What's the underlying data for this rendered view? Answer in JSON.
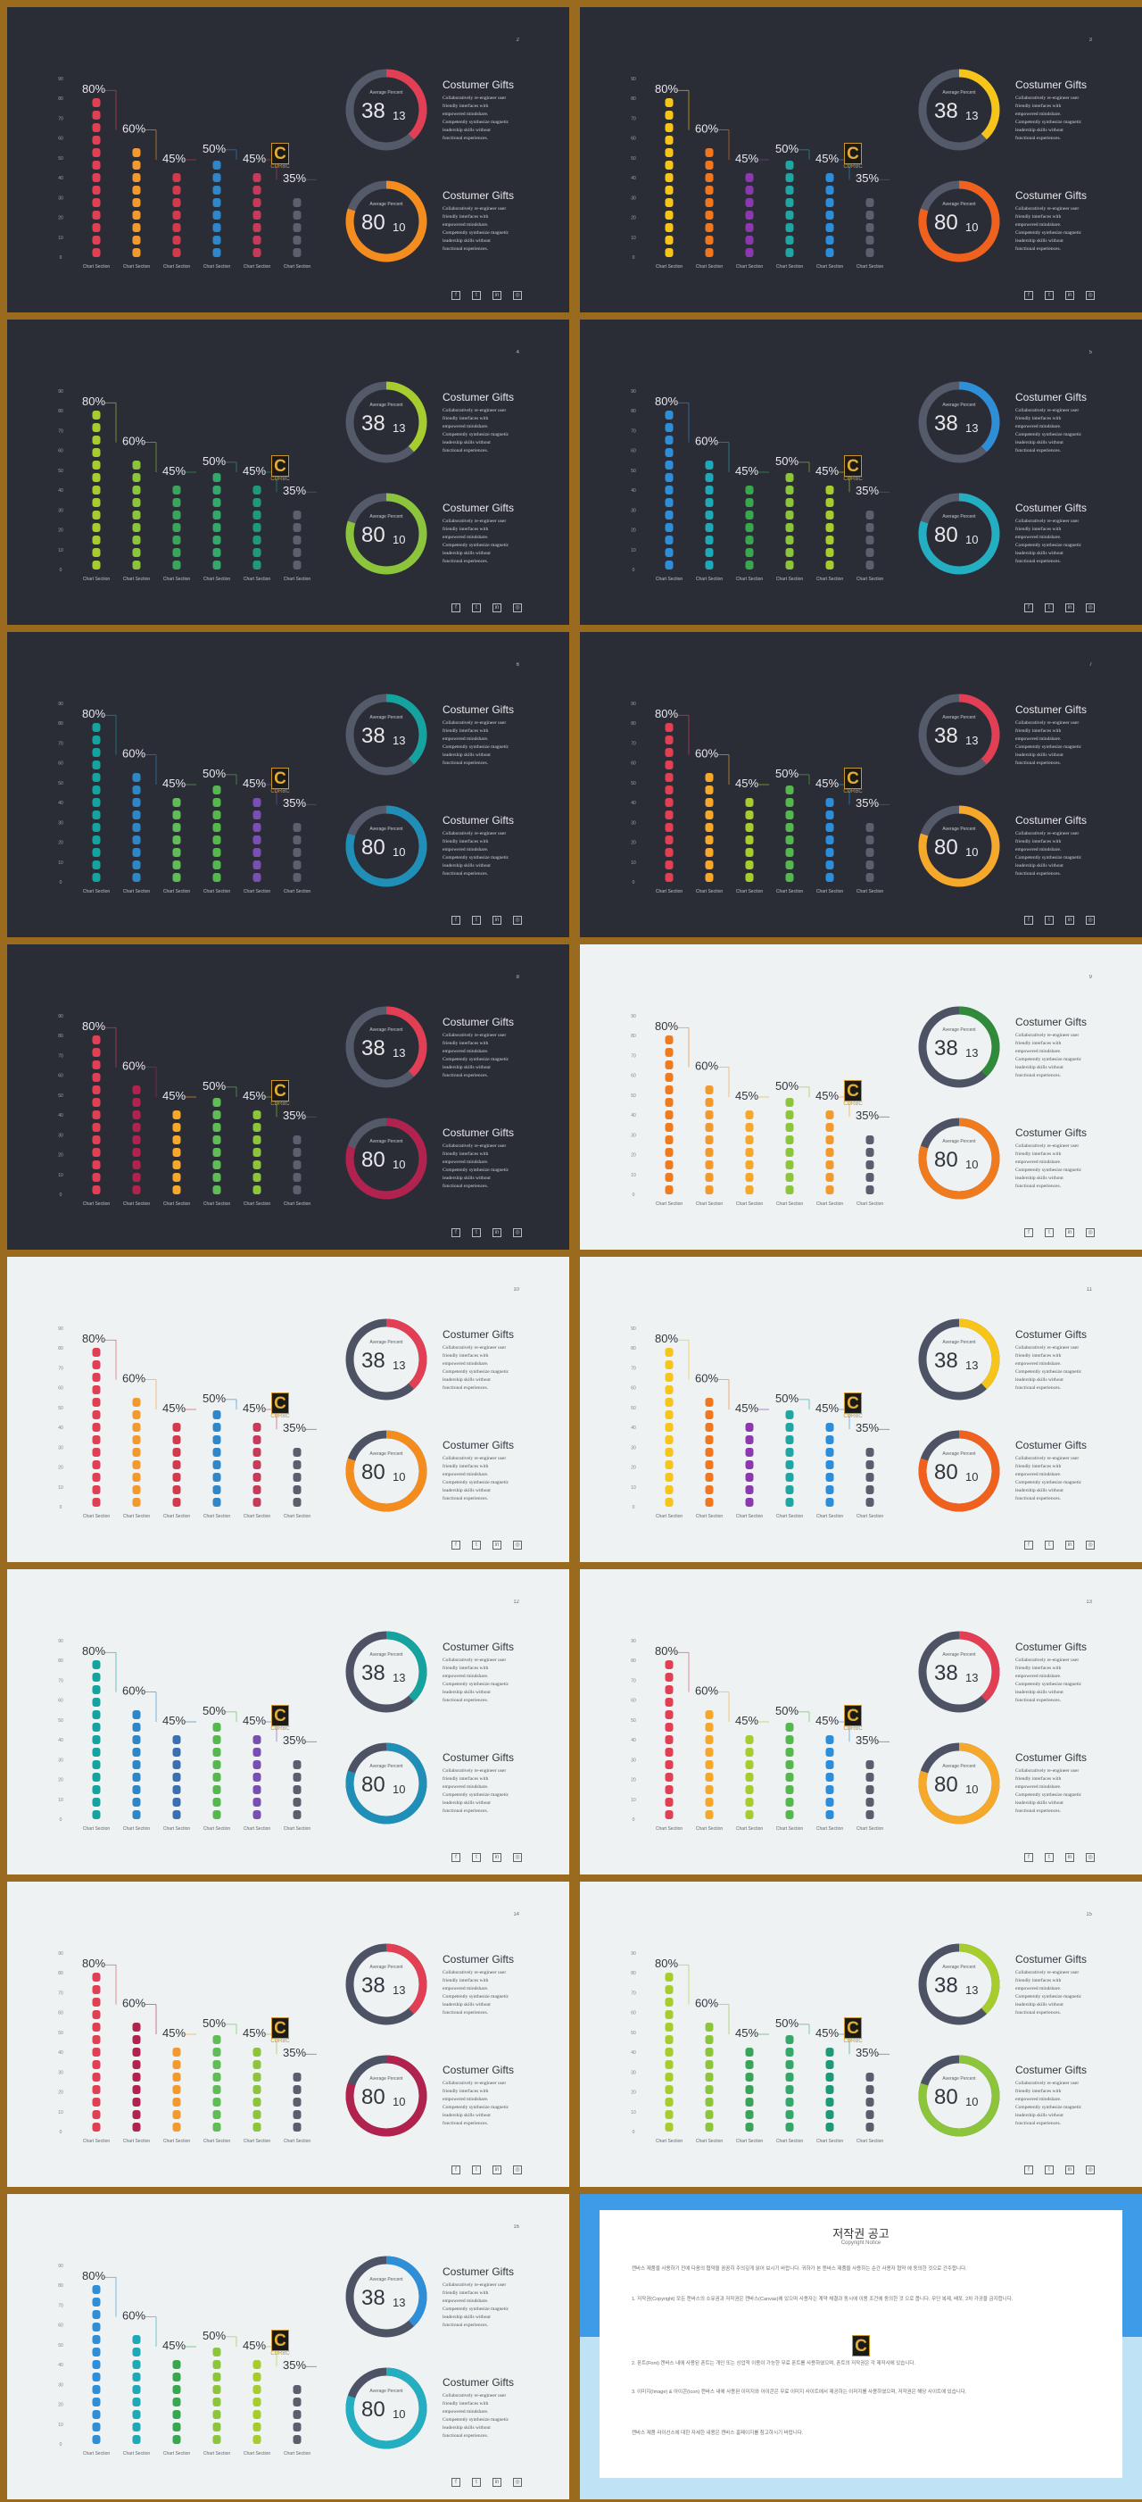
{
  "colors": {
    "frame": "#9a6a1e",
    "dark_bg": "#2b2d36",
    "light_bg": "#eef2f3",
    "gray_bar_dark": "#5b5f6e",
    "gray_bar_light": "#5a5e6d",
    "donut_track_dark": "#555a6a",
    "donut_track_light": "#4d5264",
    "notice_blue": "#3d9be8",
    "notice_light": "#bfe3f5"
  },
  "common": {
    "y_ticks": [
      "90",
      "80",
      "70",
      "60",
      "50",
      "40",
      "30",
      "20",
      "10",
      "0"
    ],
    "bar_label": "Chart Section",
    "percent_labels": [
      "80%",
      "60%",
      "45%",
      "50%",
      "45%",
      "35%"
    ],
    "donut_avg_label": "Average Percent",
    "donut1_big": "38",
    "donut1_small": "13",
    "donut2_big": "80",
    "donut2_small": "10",
    "gift_title": "Costumer Gifts",
    "gift_desc": [
      "Collaboratively re-engineer user",
      "friendly interfaces with",
      "empowered mindshare.",
      "Competently synthesize magnetic",
      "leadership skills without",
      "functional experiences."
    ],
    "logo_text": "C",
    "logo_caption": "CDRBC",
    "social_icons": [
      "facebook-icon",
      "twitter-icon",
      "linkedin-icon",
      "instagram-icon"
    ],
    "social_glyphs": [
      "f",
      "t",
      "in",
      "◎"
    ]
  },
  "chart_data": {
    "type": "bar",
    "categories": [
      "Chart Section",
      "Chart Section",
      "Chart Section",
      "Chart Section",
      "Chart Section",
      "Chart Section"
    ],
    "values": [
      80,
      60,
      45,
      50,
      45,
      35
    ],
    "ylim": [
      0,
      90
    ]
  },
  "slides": [
    {
      "page": "2",
      "theme": "dark",
      "colors": [
        "#e23f55",
        "#f29a2e",
        "#d33a4e",
        "#2f86c8",
        "#c63a5a",
        "#5b5f6e"
      ],
      "donut1": "#e23f55",
      "donut2": "#f58d1e",
      "donut1_fraction": 0.38,
      "donut2_fraction": 0.8
    },
    {
      "page": "3",
      "theme": "dark",
      "colors": [
        "#f7c41a",
        "#f0771e",
        "#8c39b0",
        "#1fa6a3",
        "#2c8ddb",
        "#5b5f6e"
      ],
      "donut1": "#f7c41a",
      "donut2": "#f0611e",
      "donut1_fraction": 0.38,
      "donut2_fraction": 0.8
    },
    {
      "page": "4",
      "theme": "dark",
      "colors": [
        "#a6cd2d",
        "#8cc43c",
        "#3aa55a",
        "#33a86a",
        "#1f9a78",
        "#5b5f6e"
      ],
      "donut1": "#a6cd2d",
      "donut2": "#8cc43c",
      "donut1_fraction": 0.38,
      "donut2_fraction": 0.8
    },
    {
      "page": "5",
      "theme": "dark",
      "colors": [
        "#2e8fd8",
        "#1fa8b8",
        "#38a74d",
        "#8cc43c",
        "#a6cd2d",
        "#5b5f6e"
      ],
      "donut1": "#2e8fd8",
      "donut2": "#23aec2",
      "donut1_fraction": 0.38,
      "donut2_fraction": 0.8
    },
    {
      "page": "6",
      "theme": "dark",
      "colors": [
        "#14a39f",
        "#2d86c6",
        "#5fbc57",
        "#55b84e",
        "#7a4fb3",
        "#5b5f6e"
      ],
      "donut1": "#14a39f",
      "donut2": "#1f8fb8",
      "donut1_fraction": 0.38,
      "donut2_fraction": 0.8
    },
    {
      "page": "7",
      "theme": "dark",
      "colors": [
        "#e23f55",
        "#f6a82a",
        "#a6cd2d",
        "#55b84e",
        "#2c8ddb",
        "#5b5f6e"
      ],
      "donut1": "#e23f55",
      "donut2": "#f6a82a",
      "donut1_fraction": 0.38,
      "donut2_fraction": 0.8
    },
    {
      "page": "8",
      "theme": "dark",
      "colors": [
        "#e23f55",
        "#b1224f",
        "#f6a82a",
        "#5fbc57",
        "#8cc43c",
        "#5b5f6e"
      ],
      "donut1": "#e23f55",
      "donut2": "#b1224f",
      "donut1_fraction": 0.38,
      "donut2_fraction": 0.8
    },
    {
      "page": "9",
      "theme": "light",
      "colors": [
        "#f07a1e",
        "#f29a2e",
        "#f6a82a",
        "#8cc43c",
        "#f29a2e",
        "#5a5e6d"
      ],
      "donut1": "#2f8a3a",
      "donut2": "#f07a1e",
      "donut1_fraction": 0.38,
      "donut2_fraction": 0.8
    },
    {
      "page": "10",
      "theme": "light",
      "colors": [
        "#e23f55",
        "#f29a2e",
        "#d33a4e",
        "#2f86c8",
        "#c63a5a",
        "#5a5e6d"
      ],
      "donut1": "#e23f55",
      "donut2": "#f58d1e",
      "donut1_fraction": 0.38,
      "donut2_fraction": 0.8
    },
    {
      "page": "11",
      "theme": "light",
      "colors": [
        "#f7c41a",
        "#f0771e",
        "#8c39b0",
        "#1fa6a3",
        "#2c8ddb",
        "#5a5e6d"
      ],
      "donut1": "#f7c41a",
      "donut2": "#f0611e",
      "donut1_fraction": 0.38,
      "donut2_fraction": 0.8
    },
    {
      "page": "12",
      "theme": "light",
      "colors": [
        "#14a39f",
        "#2d86c6",
        "#3a6fb0",
        "#55b84e",
        "#7a4fb3",
        "#5a5e6d"
      ],
      "donut1": "#14a39f",
      "donut2": "#1f8fb8",
      "donut1_fraction": 0.38,
      "donut2_fraction": 0.8
    },
    {
      "page": "13",
      "theme": "light",
      "colors": [
        "#e23f55",
        "#f6a82a",
        "#a6cd2d",
        "#55b84e",
        "#2c8ddb",
        "#5a5e6d"
      ],
      "donut1": "#e23f55",
      "donut2": "#f6a82a",
      "donut1_fraction": 0.38,
      "donut2_fraction": 0.8
    },
    {
      "page": "14",
      "theme": "light",
      "colors": [
        "#e23f55",
        "#b1224f",
        "#f29a2e",
        "#5fbc57",
        "#8cc43c",
        "#5a5e6d"
      ],
      "donut1": "#e23f55",
      "donut2": "#b1224f",
      "donut1_fraction": 0.38,
      "donut2_fraction": 0.8
    },
    {
      "page": "15",
      "theme": "light",
      "colors": [
        "#a6cd2d",
        "#8cc43c",
        "#3aa55a",
        "#33a86a",
        "#1f9a78",
        "#5a5e6d"
      ],
      "donut1": "#a6cd2d",
      "donut2": "#8cc43c",
      "donut1_fraction": 0.38,
      "donut2_fraction": 0.8
    },
    {
      "page": "16",
      "theme": "light",
      "colors": [
        "#2e8fd8",
        "#1fa8b8",
        "#38a74d",
        "#8cc43c",
        "#a6cd2d",
        "#5a5e6d"
      ],
      "donut1": "#2e8fd8",
      "donut2": "#23aec2",
      "donut1_fraction": 0.38,
      "donut2_fraction": 0.8
    }
  ],
  "notice": {
    "title": "저작권 공고",
    "subtitle": "Copyright Notice",
    "paragraphs": [
      "캔바스 제품을 사용하기 전에 다음의 협약을 꼼꼼히 주의깊게 읽어 보시기 바랍니다. 귀하가 본 캔바스 제품을 사용하는 순간 사용자 협약 에 동의한 것으로 간주합니다.",
      "1. 저작권(Copyright) 모든 캔바스의 소유권과 저작권은 캔바스(Canvas)에 있으며 사용자는 계약 체결과 동시에 이용 조건에 동의한 것 으로 봅니다. 무단 복제, 배포, 2차 가공을 금지합니다.",
      "2. 폰트(Font) 캔바스 내에 사용된 폰트는 개인 또는 상업적 이용이 가능한 무료 폰트를 사용하였으며, 폰트의 저작권은 각 제작사에 있습니다.",
      "3. 이미지(Image) & 아이콘(Icon) 캔바스 내에 사용된 이미지와 아이콘은 무료 이미지 사이트에서 제공하는 이미지를 사용하였으며, 저작권은 해당 사이트에 있습니다.",
      "캔바스 제품 라이선스에 대한 자세한 내용은 캔바스 홈페이지를 참고하시기 바랍니다."
    ],
    "logo_text": "C"
  }
}
